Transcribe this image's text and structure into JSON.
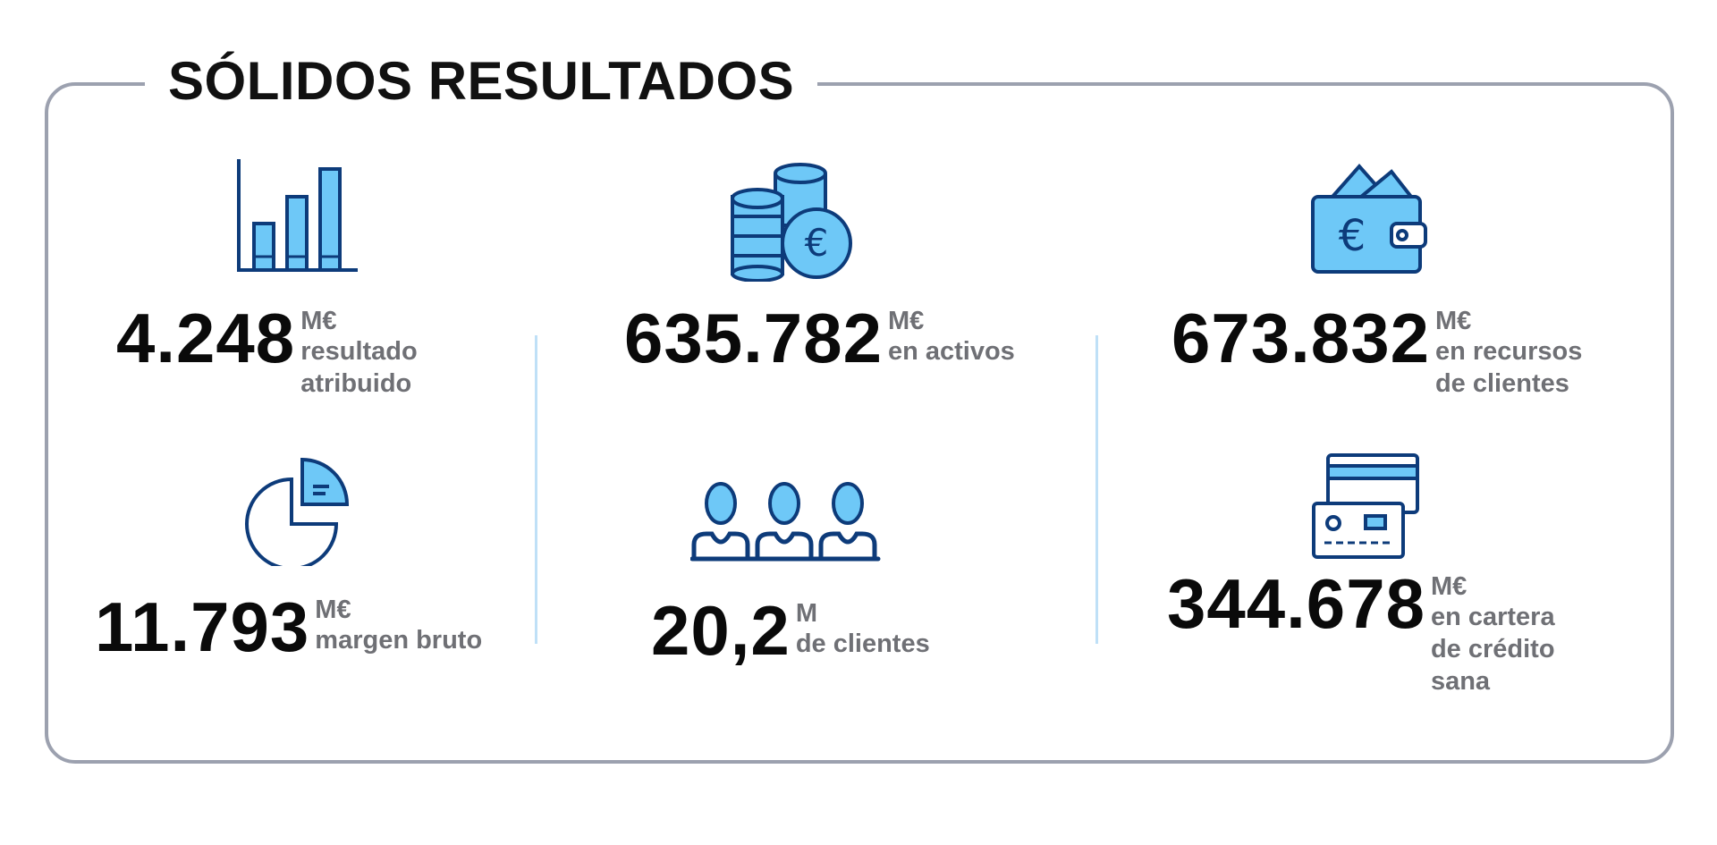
{
  "title": "SÓLIDOS RESULTADOS",
  "colors": {
    "icon_fill": "#6ec8f7",
    "icon_stroke": "#0d3b7a",
    "divider": "#bfe0f7",
    "frame": "#9ca1af",
    "value_text": "#0a0a0a",
    "label_text": "#6f7075"
  },
  "stats": {
    "result": {
      "icon": "bar-chart-icon",
      "value": "4.248",
      "unit": "M€",
      "desc": [
        "resultado",
        "atribuido"
      ]
    },
    "assets": {
      "icon": "coins-euro-icon",
      "value": "635.782",
      "unit": "M€",
      "desc": [
        "en activos"
      ]
    },
    "resources": {
      "icon": "wallet-euro-icon",
      "value": "673.832",
      "unit": "M€",
      "desc": [
        "en recursos",
        "de clientes"
      ]
    },
    "margin": {
      "icon": "pie-chart-icon",
      "value": "11.793",
      "unit": "M€",
      "desc": [
        "margen bruto"
      ]
    },
    "clients": {
      "icon": "people-icon",
      "value": "20,2",
      "unit": "M",
      "desc": [
        "de clientes"
      ]
    },
    "credit": {
      "icon": "credit-card-icon",
      "value": "344.678",
      "unit": "M€",
      "desc": [
        "en cartera",
        "de crédito",
        "sana"
      ]
    }
  }
}
